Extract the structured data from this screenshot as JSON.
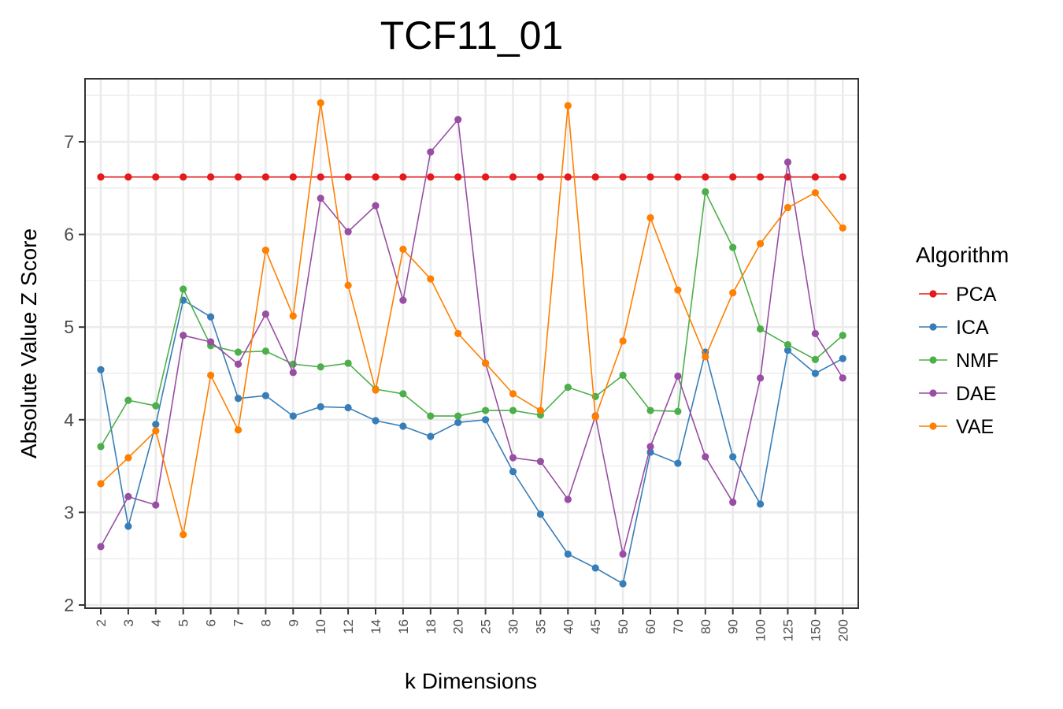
{
  "chart_data": {
    "type": "line",
    "title": "TCF11_01",
    "xlabel": "k Dimensions",
    "ylabel": "Absolute Value Z Score",
    "categories": [
      "2",
      "3",
      "4",
      "5",
      "6",
      "7",
      "8",
      "9",
      "10",
      "12",
      "14",
      "16",
      "18",
      "20",
      "25",
      "30",
      "35",
      "40",
      "45",
      "50",
      "60",
      "70",
      "80",
      "90",
      "100",
      "125",
      "150",
      "200"
    ],
    "ylim": [
      2,
      7.7
    ],
    "yticks": [
      2,
      3,
      4,
      5,
      6,
      7
    ],
    "grid": true,
    "legend": {
      "title": "Algorithm",
      "position": "right"
    },
    "series": [
      {
        "name": "PCA",
        "color": "#e41a1c",
        "values": [
          6.62,
          6.62,
          6.62,
          6.62,
          6.62,
          6.62,
          6.62,
          6.62,
          6.62,
          6.62,
          6.62,
          6.62,
          6.62,
          6.62,
          6.62,
          6.62,
          6.62,
          6.62,
          6.62,
          6.62,
          6.62,
          6.62,
          6.62,
          6.62,
          6.62,
          6.62,
          6.62,
          6.62
        ]
      },
      {
        "name": "ICA",
        "color": "#377eb8",
        "values": [
          4.54,
          2.85,
          3.95,
          5.29,
          5.11,
          4.23,
          4.26,
          4.04,
          4.14,
          4.13,
          3.99,
          3.93,
          3.82,
          3.97,
          4.0,
          3.44,
          2.98,
          2.55,
          2.4,
          2.23,
          3.65,
          3.53,
          4.73,
          3.6,
          3.09,
          4.75,
          4.5,
          4.66
        ]
      },
      {
        "name": "NMF",
        "color": "#4daf4a",
        "values": [
          3.71,
          4.21,
          4.15,
          5.41,
          4.8,
          4.73,
          4.74,
          4.6,
          4.57,
          4.61,
          4.33,
          4.28,
          4.04,
          4.04,
          4.1,
          4.1,
          4.05,
          4.35,
          4.25,
          4.48,
          4.1,
          4.09,
          6.46,
          5.86,
          4.98,
          4.81,
          4.65,
          4.91
        ]
      },
      {
        "name": "DAE",
        "color": "#984ea3",
        "values": [
          2.63,
          3.17,
          3.08,
          4.91,
          4.84,
          4.6,
          5.14,
          4.51,
          6.39,
          6.03,
          6.31,
          5.29,
          6.89,
          7.24,
          4.61,
          3.59,
          3.55,
          3.14,
          4.04,
          2.55,
          3.71,
          4.47,
          3.6,
          3.11,
          4.45,
          6.78,
          4.93,
          4.45
        ]
      },
      {
        "name": "VAE",
        "color": "#ff7f00",
        "values": [
          3.31,
          3.59,
          3.88,
          2.76,
          4.48,
          3.89,
          5.83,
          5.12,
          7.42,
          5.45,
          4.32,
          5.84,
          5.52,
          4.93,
          4.61,
          4.28,
          4.1,
          7.39,
          4.03,
          4.85,
          6.18,
          5.4,
          4.68,
          5.37,
          5.9,
          6.29,
          6.45,
          6.07
        ]
      }
    ]
  }
}
